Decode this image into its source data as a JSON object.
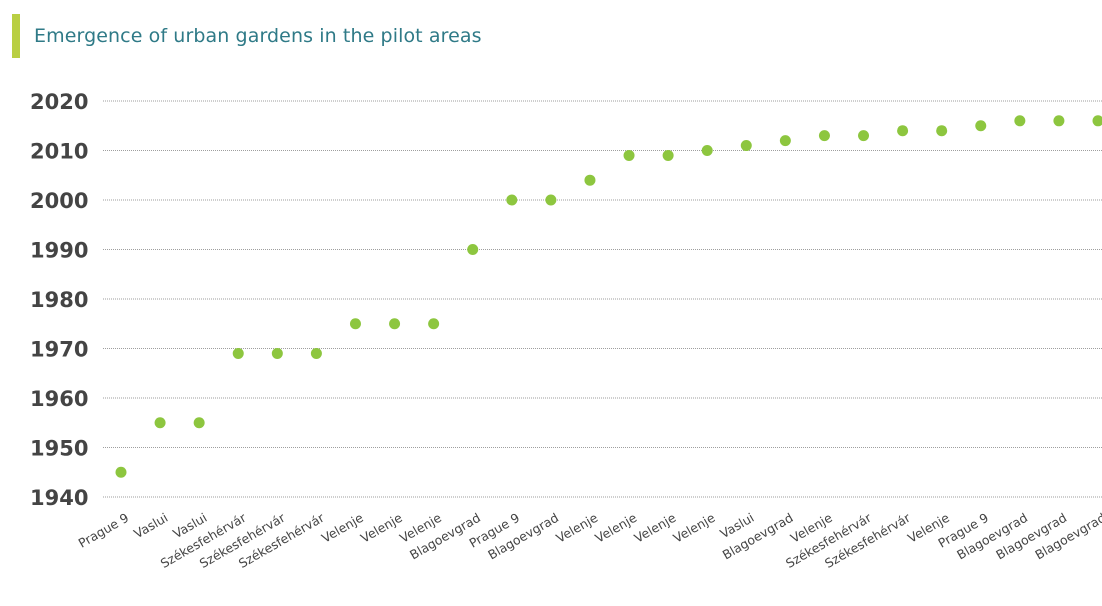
{
  "header": {
    "title": "Emergence of urban gardens in the pilot areas",
    "accent_color": "#b9cf43",
    "title_color": "#2f7a87"
  },
  "chart_data": {
    "type": "scatter",
    "title": "Emergence of urban gardens in the pilot areas",
    "xlabel": "",
    "ylabel": "",
    "categories": [
      "Prague 9",
      "Vaslui",
      "Vaslui",
      "Székesfehérvár",
      "Székesfehérvár",
      "Székesfehérvár",
      "Velenje",
      "Velenje",
      "Velenje",
      "Blagoevgrad",
      "Prague 9",
      "Blagoevgrad",
      "Velenje",
      "Velenje",
      "Velenje",
      "Velenje",
      "Vaslui",
      "Blagoevgrad",
      "Velenje",
      "Székesfehérvár",
      "Székesfehérvár",
      "Velenje",
      "Prague 9",
      "Blagoevgrad",
      "Blagoevgrad",
      "Blagoevgrad"
    ],
    "values": [
      1945,
      1955,
      1955,
      1969,
      1969,
      1969,
      1975,
      1975,
      1975,
      1990,
      2000,
      2000,
      2004,
      2009,
      2009,
      2010,
      2011,
      2012,
      2013,
      2013,
      2014,
      2014,
      2015,
      2016,
      2016,
      2016
    ],
    "yticks": [
      1940,
      1950,
      1960,
      1970,
      1980,
      1990,
      2000,
      2010,
      2020
    ],
    "ylim": [
      1940,
      2020
    ],
    "grid": true,
    "point_color": "#8dc63f",
    "grid_color": "#7f7f7f"
  }
}
